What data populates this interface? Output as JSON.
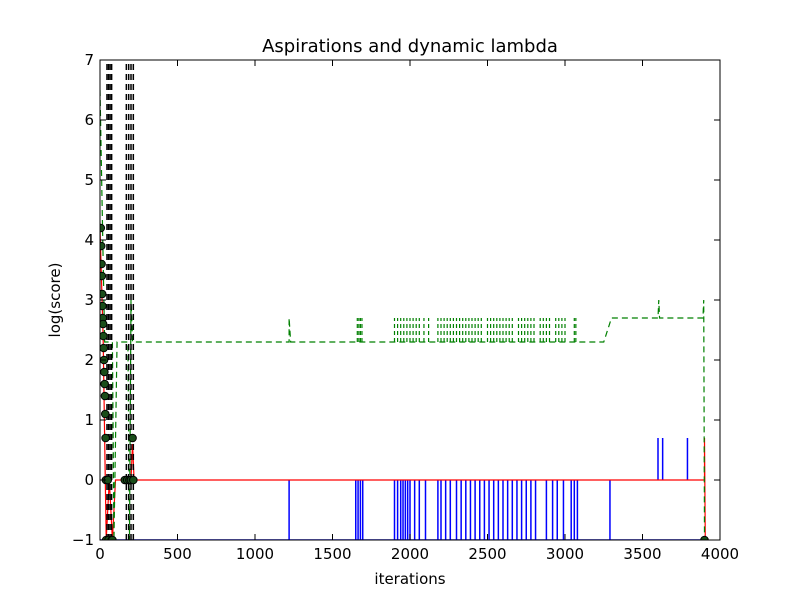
{
  "chart_data": {
    "type": "line",
    "title": "Aspirations and dynamic lambda",
    "xlabel": "iterations",
    "ylabel": "log(score)",
    "xlim": [
      0,
      4000
    ],
    "ylim": [
      -1,
      7
    ],
    "x_ticks": [
      "0",
      "500",
      "1000",
      "1500",
      "2000",
      "2500",
      "3000",
      "3500",
      "4000"
    ],
    "y_ticks": [
      "−1",
      "0",
      "1",
      "2",
      "3",
      "4",
      "5",
      "6",
      "7"
    ],
    "grid": false,
    "legend": "none",
    "colors": {
      "blue": "#0000ff",
      "red": "#ff0000",
      "green": "#008000",
      "black": "#000000"
    },
    "series": [
      {
        "style": "blue-solid",
        "color": "#0000ff",
        "spikes_to_0": [
          1220,
          1650,
          1665,
          1680,
          1695,
          1900,
          1920,
          1940,
          1955,
          1970,
          1985,
          2000,
          2030,
          2060,
          2100,
          2180,
          2200,
          2230,
          2260,
          2300,
          2330,
          2360,
          2390,
          2420,
          2450,
          2480,
          2510,
          2540,
          2570,
          2600,
          2630,
          2660,
          2690,
          2720,
          2750,
          2780,
          2810,
          2880,
          2920,
          2950,
          2990,
          3040,
          3060,
          3080,
          3290
        ],
        "spikes_to_0.7": [
          3600,
          3630,
          3790
        ],
        "baseline": -1,
        "span": [
          0,
          3900
        ]
      },
      {
        "style": "red-solid",
        "color": "#ff0000",
        "points": [
          [
            0,
            4.2
          ],
          [
            20,
            2.4
          ],
          [
            40,
            -1
          ],
          [
            60,
            0
          ],
          [
            80,
            -1
          ],
          [
            100,
            0
          ],
          [
            200,
            0
          ],
          [
            210,
            0.6
          ],
          [
            220,
            0
          ],
          [
            3900,
            0
          ],
          [
            3900,
            0.7
          ],
          [
            3905,
            -1
          ]
        ]
      },
      {
        "style": "green-dashed",
        "color": "#008000",
        "points": [
          [
            0,
            6.5
          ],
          [
            30,
            2.3
          ],
          [
            80,
            2.3
          ],
          [
            90,
            -1
          ],
          [
            110,
            2.3
          ],
          [
            180,
            2.3
          ],
          [
            190,
            -1
          ],
          [
            200,
            3.0
          ],
          [
            210,
            2.3
          ],
          [
            1220,
            2.3
          ],
          [
            1220,
            2.7
          ],
          [
            1230,
            2.3
          ],
          [
            3250,
            2.3
          ],
          [
            3300,
            2.7
          ],
          [
            3600,
            2.7
          ],
          [
            3605,
            3.0
          ],
          [
            3610,
            2.7
          ],
          [
            3890,
            2.7
          ],
          [
            3895,
            3.0
          ],
          [
            3900,
            -1
          ]
        ],
        "marks_2.3_to_2.7": [
          1660,
          1670,
          1680,
          1690,
          1900,
          1920,
          1940,
          1960,
          1980,
          2000,
          2020,
          2040,
          2060,
          2090,
          2120,
          2180,
          2200,
          2220,
          2240,
          2260,
          2280,
          2300,
          2320,
          2340,
          2360,
          2380,
          2400,
          2420,
          2440,
          2460,
          2500,
          2520,
          2540,
          2560,
          2580,
          2600,
          2620,
          2640,
          2660,
          2700,
          2720,
          2740,
          2760,
          2780,
          2800,
          2840,
          2860,
          2880,
          2900,
          2940,
          2960,
          2980,
          3000,
          3060,
          3070
        ]
      },
      {
        "style": "black-dashed",
        "color": "#000000",
        "vertical_lines_x": [
          45,
          55,
          65,
          75,
          170,
          185,
          200,
          215
        ],
        "y_range": [
          -1,
          7
        ]
      },
      {
        "style": "black-markers",
        "color": "#000000",
        "points": [
          [
            5,
            4.2
          ],
          [
            8,
            3.9
          ],
          [
            10,
            3.6
          ],
          [
            12,
            3.4
          ],
          [
            14,
            3.1
          ],
          [
            16,
            2.9
          ],
          [
            18,
            2.7
          ],
          [
            20,
            2.6
          ],
          [
            22,
            2.4
          ],
          [
            24,
            2.2
          ],
          [
            26,
            2.0
          ],
          [
            28,
            1.8
          ],
          [
            30,
            1.6
          ],
          [
            32,
            1.4
          ],
          [
            34,
            1.1
          ],
          [
            36,
            0.7
          ],
          [
            38,
            0.0
          ],
          [
            40,
            -1
          ],
          [
            50,
            0.0
          ],
          [
            55,
            -1
          ],
          [
            75,
            -1
          ],
          [
            80,
            -1
          ],
          [
            160,
            0.0
          ],
          [
            175,
            0.0
          ],
          [
            190,
            0.0
          ],
          [
            200,
            0.0
          ],
          [
            210,
            0.7
          ],
          [
            215,
            0.0
          ],
          [
            3900,
            -1
          ]
        ]
      }
    ]
  }
}
